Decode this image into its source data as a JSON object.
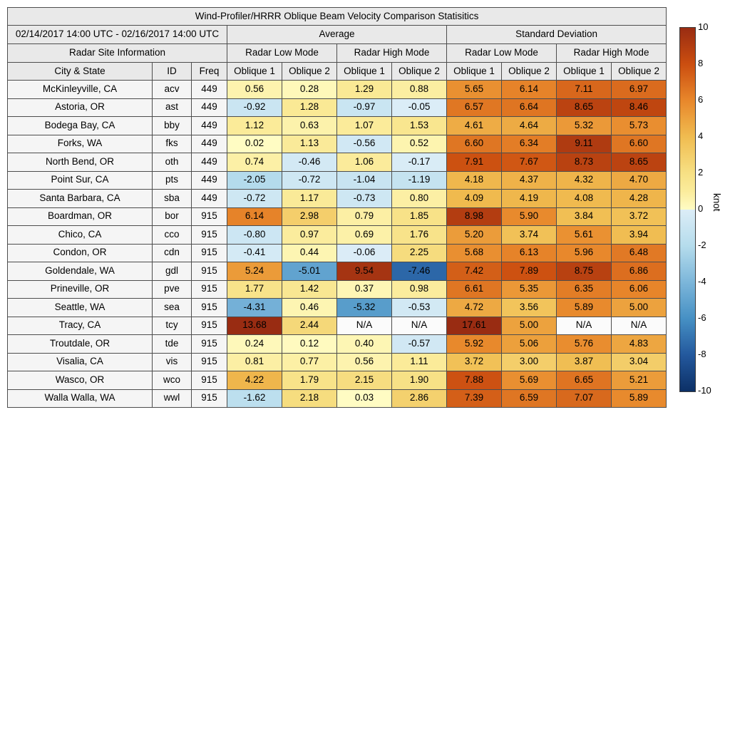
{
  "title": "Wind-Profiler/HRRR Oblique Beam Velocity Comparison Statisitics",
  "table": {
    "period": "02/14/2017 14:00 UTC - 02/16/2017 14:00 UTC",
    "section_average": "Average",
    "section_std": "Standard Deviation",
    "site_info": "Radar Site Information",
    "modes": [
      "Radar Low Mode",
      "Radar High Mode",
      "Radar Low Mode",
      "Radar High Mode"
    ],
    "col_headers": [
      "City & State",
      "ID",
      "Freq",
      "Oblique 1",
      "Oblique 2",
      "Oblique 1",
      "Oblique 2",
      "Oblique 1",
      "Oblique 2",
      "Oblique 1",
      "Oblique 2"
    ],
    "na_text": "N/A"
  },
  "colorbar": {
    "label": "knot",
    "min": -10,
    "max": 10,
    "ticks": [
      10,
      8,
      6,
      4,
      2,
      0,
      -2,
      -4,
      -6,
      -8,
      -10
    ],
    "stops": [
      {
        "v": -10,
        "c": "#0c3066"
      },
      {
        "v": -8,
        "c": "#23589d"
      },
      {
        "v": -6,
        "c": "#4690c4"
      },
      {
        "v": -4,
        "c": "#7cb6da"
      },
      {
        "v": -2,
        "c": "#b5dcec"
      },
      {
        "v": -0.001,
        "c": "#dcedf7"
      },
      {
        "v": 0,
        "c": "#fffcc4"
      },
      {
        "v": 1,
        "c": "#fbec9c"
      },
      {
        "v": 2,
        "c": "#f7e084"
      },
      {
        "v": 4,
        "c": "#f0bc50"
      },
      {
        "v": 6,
        "c": "#e8872b"
      },
      {
        "v": 8,
        "c": "#cb4e10"
      },
      {
        "v": 10,
        "c": "#992c12"
      }
    ],
    "na_color": "#fbfbfb"
  },
  "chart_data": {
    "type": "heatmap",
    "title": "Wind-Profiler/HRRR Oblique Beam Velocity Comparison Statisitics",
    "period": "02/14/2017 14:00 UTC - 02/16/2017 14:00 UTC",
    "units": "knot",
    "color_range": [
      -10,
      10
    ],
    "legend_position": "right",
    "value_columns": [
      "Average Radar Low Mode Oblique 1",
      "Average Radar Low Mode Oblique 2",
      "Average Radar High Mode Oblique 1",
      "Average Radar High Mode Oblique 2",
      "Standard Deviation Radar Low Mode Oblique 1",
      "Standard Deviation Radar Low Mode Oblique 2",
      "Standard Deviation Radar High Mode Oblique 1",
      "Standard Deviation Radar High Mode Oblique 2"
    ],
    "rows": [
      {
        "city": "McKinleyville, CA",
        "id": "acv",
        "freq": 449,
        "values": [
          0.56,
          0.28,
          1.29,
          0.88,
          5.65,
          6.14,
          7.11,
          6.97
        ]
      },
      {
        "city": "Astoria, OR",
        "id": "ast",
        "freq": 449,
        "values": [
          -0.92,
          1.28,
          -0.97,
          -0.05,
          6.57,
          6.64,
          8.65,
          8.46
        ]
      },
      {
        "city": "Bodega Bay, CA",
        "id": "bby",
        "freq": 449,
        "values": [
          1.12,
          0.63,
          1.07,
          1.53,
          4.61,
          4.64,
          5.32,
          5.73
        ]
      },
      {
        "city": "Forks, WA",
        "id": "fks",
        "freq": 449,
        "values": [
          0.02,
          1.13,
          -0.56,
          0.52,
          6.6,
          6.34,
          9.11,
          6.6
        ]
      },
      {
        "city": "North Bend, OR",
        "id": "oth",
        "freq": 449,
        "values": [
          0.74,
          -0.46,
          1.06,
          -0.17,
          7.91,
          7.67,
          8.73,
          8.65
        ]
      },
      {
        "city": "Point Sur, CA",
        "id": "pts",
        "freq": 449,
        "values": [
          -2.05,
          -0.72,
          -1.04,
          -1.19,
          4.18,
          4.37,
          4.32,
          4.7
        ]
      },
      {
        "city": "Santa Barbara, CA",
        "id": "sba",
        "freq": 449,
        "values": [
          -0.72,
          1.17,
          -0.73,
          0.8,
          4.09,
          4.19,
          4.08,
          4.28
        ]
      },
      {
        "city": "Boardman, OR",
        "id": "bor",
        "freq": 915,
        "values": [
          6.14,
          2.98,
          0.79,
          1.85,
          8.98,
          5.9,
          3.84,
          3.72
        ]
      },
      {
        "city": "Chico, CA",
        "id": "cco",
        "freq": 915,
        "values": [
          -0.8,
          0.97,
          0.69,
          1.76,
          5.2,
          3.74,
          5.61,
          3.94
        ]
      },
      {
        "city": "Condon, OR",
        "id": "cdn",
        "freq": 915,
        "values": [
          -0.41,
          0.44,
          -0.06,
          2.25,
          5.68,
          6.13,
          5.96,
          6.48
        ]
      },
      {
        "city": "Goldendale, WA",
        "id": "gdl",
        "freq": 915,
        "values": [
          5.24,
          -5.01,
          9.54,
          -7.46,
          7.42,
          7.89,
          8.75,
          6.86
        ]
      },
      {
        "city": "Prineville, OR",
        "id": "pve",
        "freq": 915,
        "values": [
          1.77,
          1.42,
          0.37,
          0.98,
          6.61,
          5.35,
          6.35,
          6.06
        ]
      },
      {
        "city": "Seattle, WA",
        "id": "sea",
        "freq": 915,
        "values": [
          -4.31,
          0.46,
          -5.32,
          -0.53,
          4.72,
          3.56,
          5.89,
          5.0
        ]
      },
      {
        "city": "Tracy, CA",
        "id": "tcy",
        "freq": 915,
        "values": [
          13.68,
          2.44,
          "N/A",
          "N/A",
          17.61,
          5.0,
          "N/A",
          "N/A"
        ]
      },
      {
        "city": "Troutdale, OR",
        "id": "tde",
        "freq": 915,
        "values": [
          0.24,
          0.12,
          0.4,
          -0.57,
          5.92,
          5.06,
          5.76,
          4.83
        ]
      },
      {
        "city": "Visalia, CA",
        "id": "vis",
        "freq": 915,
        "values": [
          0.81,
          0.77,
          0.56,
          1.11,
          3.72,
          3.0,
          3.87,
          3.04
        ]
      },
      {
        "city": "Wasco, OR",
        "id": "wco",
        "freq": 915,
        "values": [
          4.22,
          1.79,
          2.15,
          1.9,
          7.88,
          5.69,
          6.65,
          5.21
        ]
      },
      {
        "city": "Walla Walla, WA",
        "id": "wwl",
        "freq": 915,
        "values": [
          -1.62,
          2.18,
          0.03,
          2.86,
          7.39,
          6.59,
          7.07,
          5.89
        ]
      }
    ]
  }
}
